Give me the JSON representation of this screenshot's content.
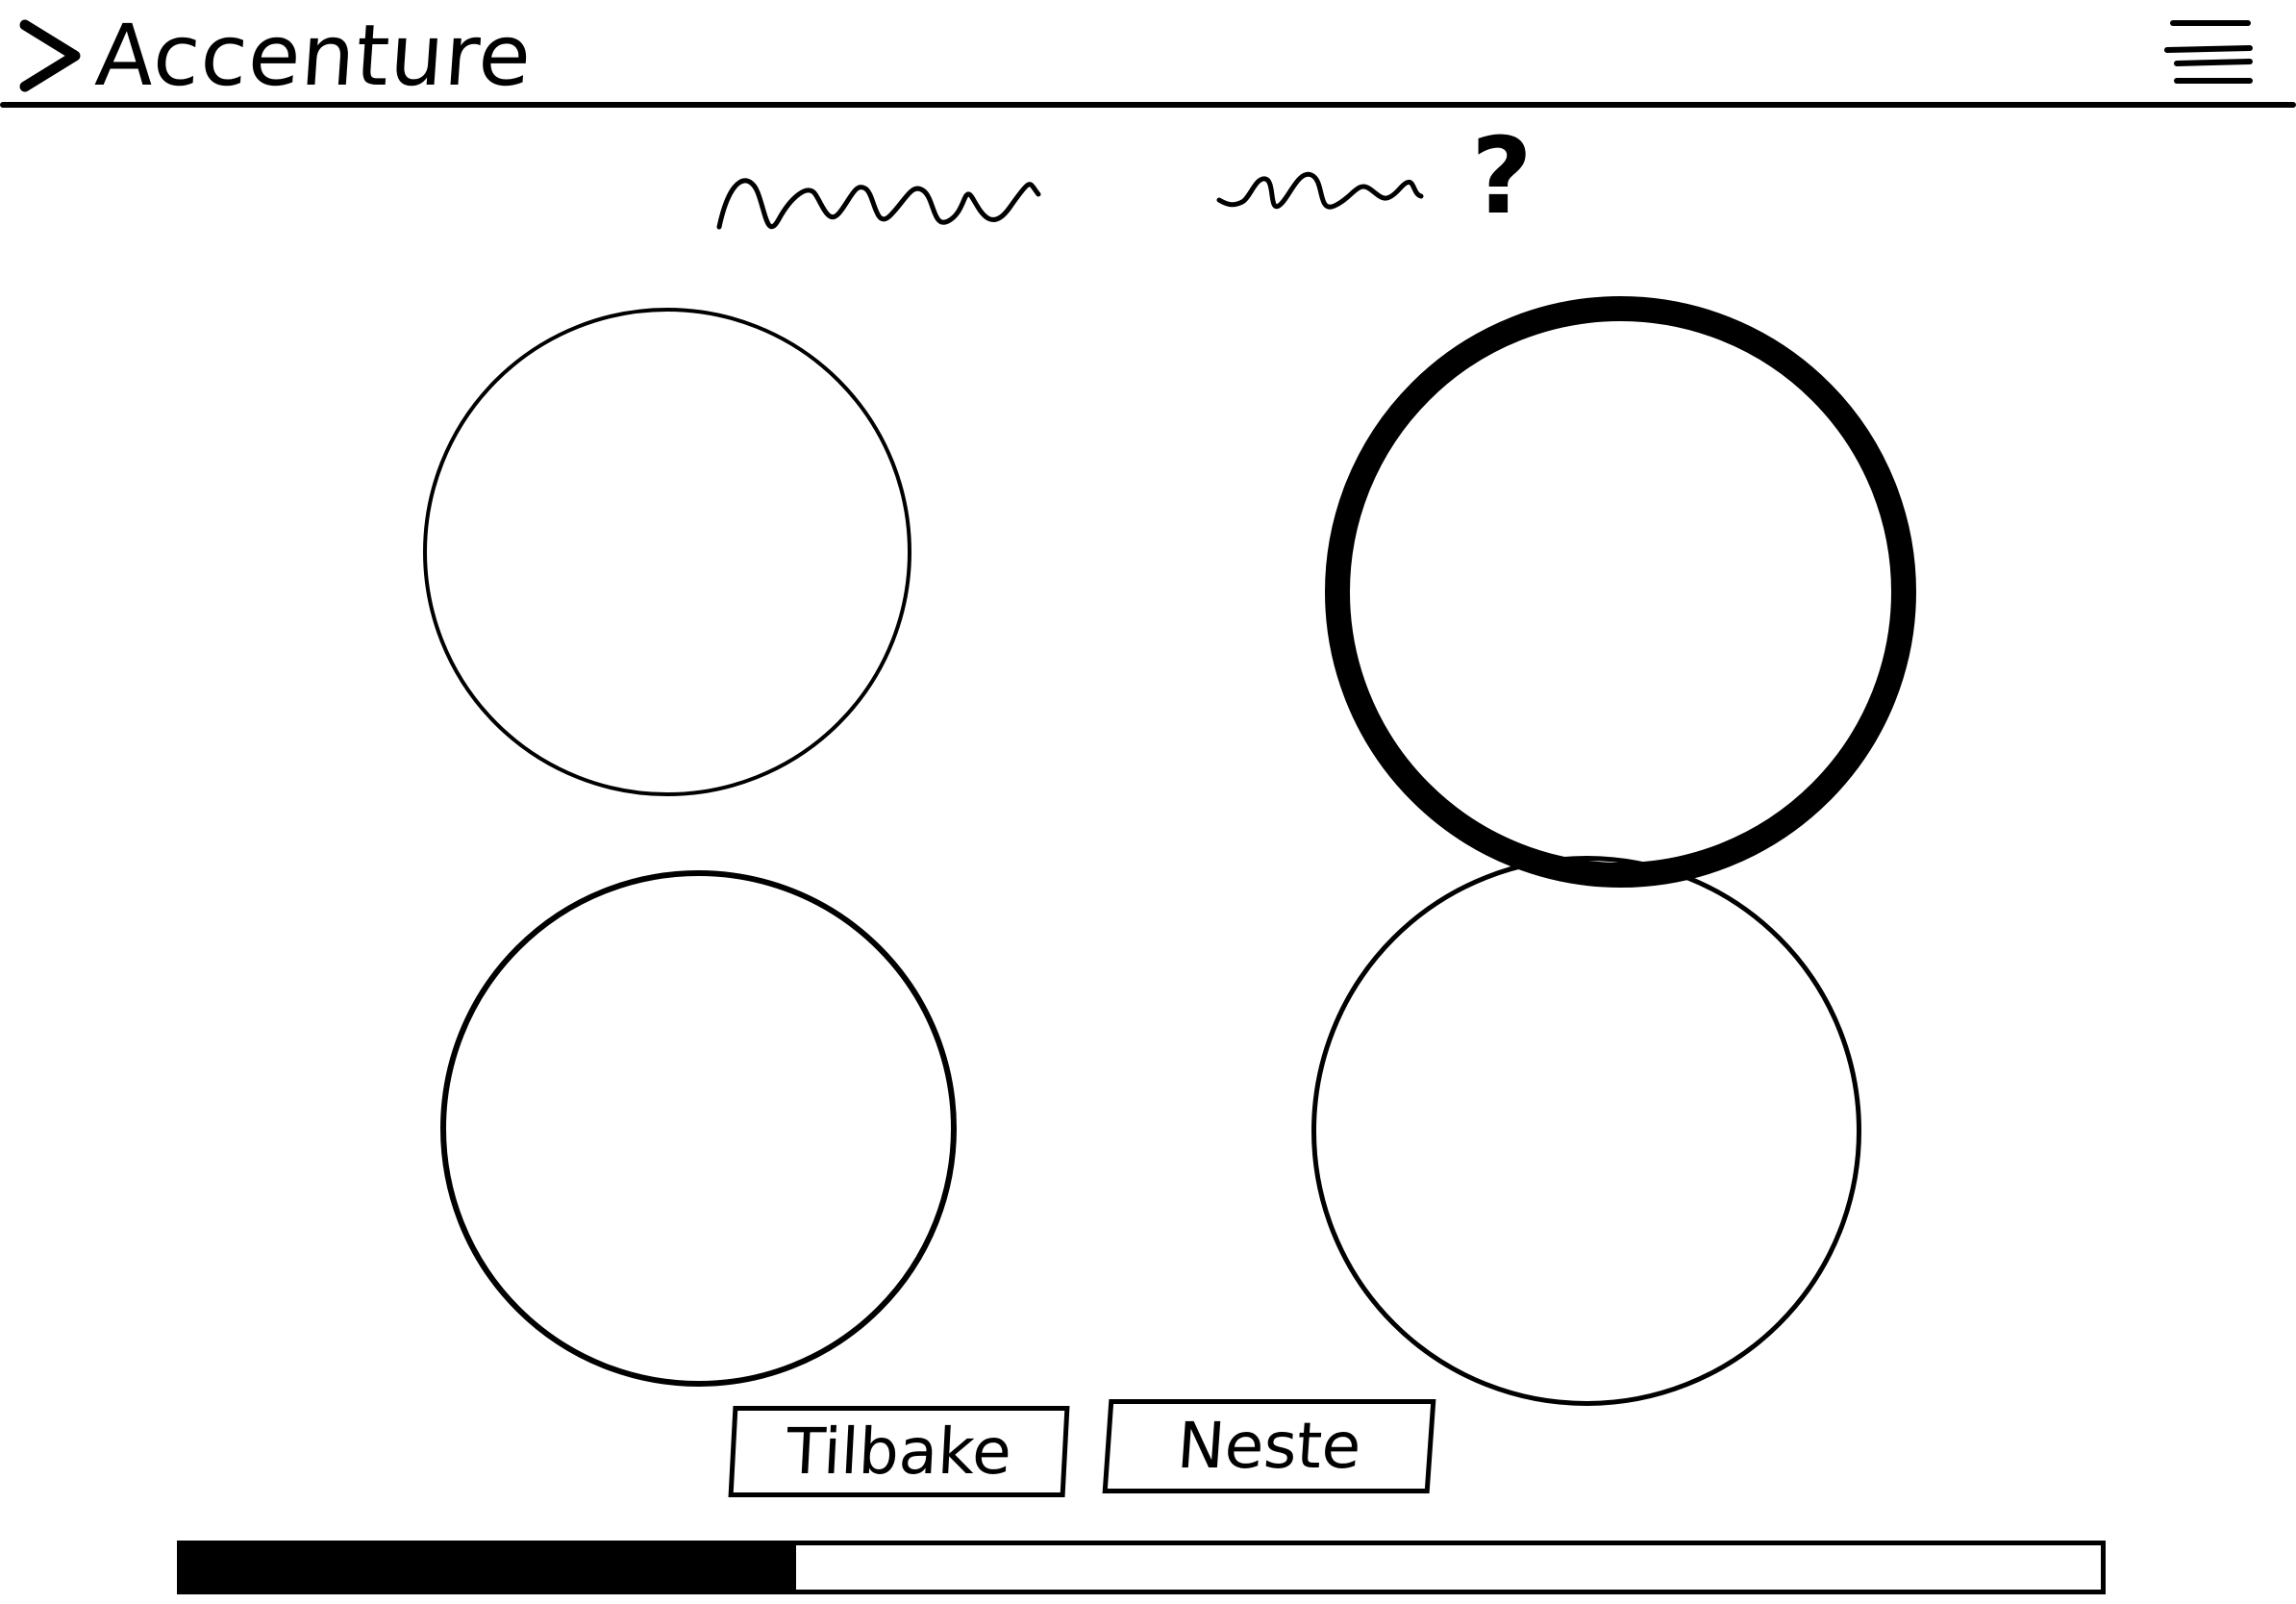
{
  "header": {
    "logo_text": "Accenture",
    "logo_icon": "chevron-right-icon",
    "menu_icon": "hamburger-menu-icon"
  },
  "question": {
    "mark": "?"
  },
  "options": [
    {
      "id": "option-1",
      "selected": false
    },
    {
      "id": "option-2",
      "selected": true
    },
    {
      "id": "option-3",
      "selected": false
    },
    {
      "id": "option-4",
      "selected": false
    }
  ],
  "navigation": {
    "back_label": "Tilbake",
    "next_label": "Neste"
  },
  "progress": {
    "value": 0.32
  },
  "colors": {
    "ink": "#000000",
    "background": "#ffffff"
  }
}
